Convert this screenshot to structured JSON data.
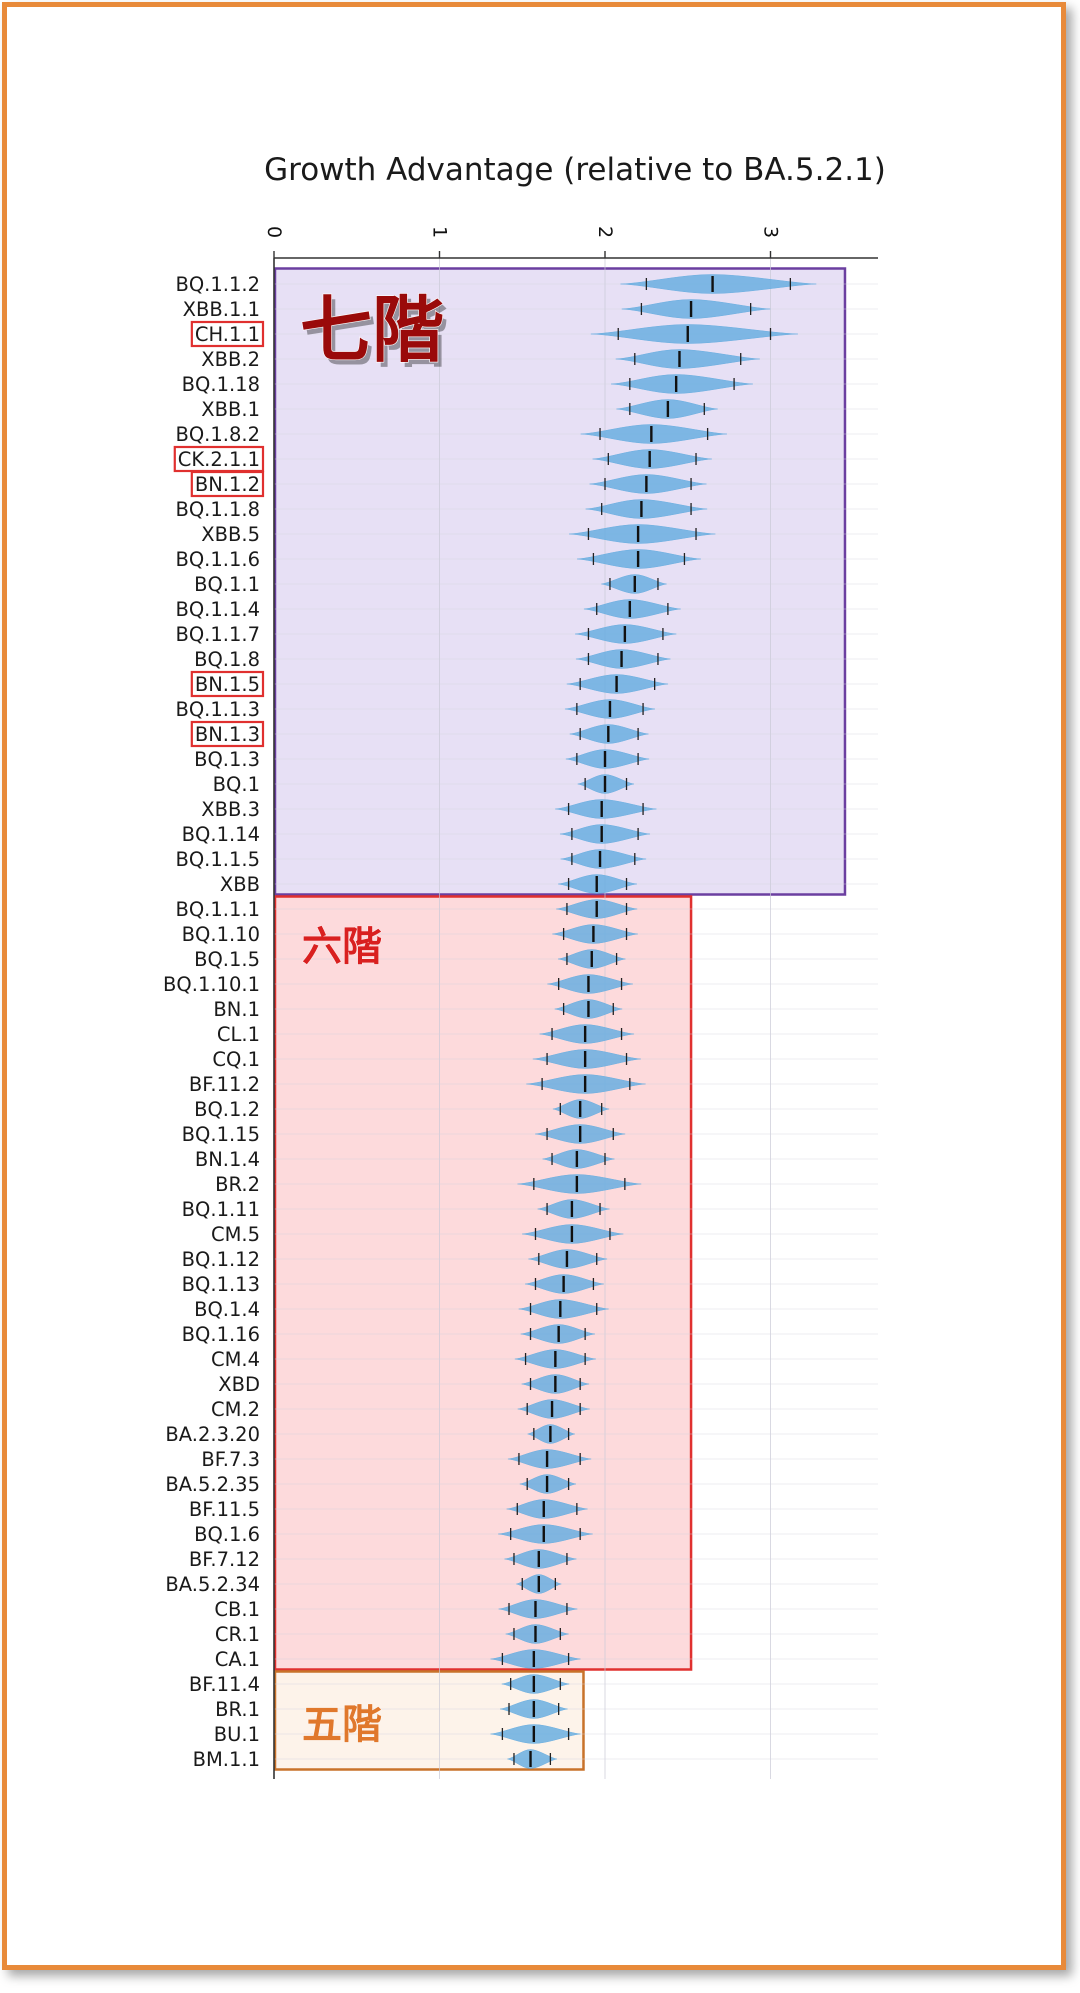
{
  "chart_data": {
    "type": "violin",
    "title": "Growth Advantage (relative to BA.5.2.1)",
    "xlabel": "",
    "ylabel": "",
    "xlim": [
      0,
      3.6
    ],
    "xticks": [
      "0",
      "1",
      "2",
      "3"
    ],
    "xtick_values": [
      0,
      1,
      2,
      3
    ],
    "color": "#6aaee0",
    "categories": [
      {
        "label": "BQ.1.1.2",
        "lo": 2.25,
        "median": 2.65,
        "hi": 3.12,
        "highlight": false
      },
      {
        "label": "XBB.1.1",
        "lo": 2.22,
        "median": 2.52,
        "hi": 2.88,
        "highlight": false
      },
      {
        "label": "CH.1.1",
        "lo": 2.08,
        "median": 2.5,
        "hi": 3.0,
        "highlight": true
      },
      {
        "label": "XBB.2",
        "lo": 2.18,
        "median": 2.45,
        "hi": 2.82,
        "highlight": false
      },
      {
        "label": "BQ.1.18",
        "lo": 2.15,
        "median": 2.43,
        "hi": 2.78,
        "highlight": false
      },
      {
        "label": "XBB.1",
        "lo": 2.15,
        "median": 2.38,
        "hi": 2.6,
        "highlight": false
      },
      {
        "label": "BQ.1.8.2",
        "lo": 1.97,
        "median": 2.28,
        "hi": 2.62,
        "highlight": false
      },
      {
        "label": "CK.2.1.1",
        "lo": 2.02,
        "median": 2.27,
        "hi": 2.55,
        "highlight": true
      },
      {
        "label": "BN.1.2",
        "lo": 2.0,
        "median": 2.25,
        "hi": 2.52,
        "highlight": true
      },
      {
        "label": "BQ.1.1.8",
        "lo": 1.98,
        "median": 2.22,
        "hi": 2.52,
        "highlight": false
      },
      {
        "label": "XBB.5",
        "lo": 1.9,
        "median": 2.2,
        "hi": 2.55,
        "highlight": false
      },
      {
        "label": "BQ.1.1.6",
        "lo": 1.93,
        "median": 2.2,
        "hi": 2.48,
        "highlight": false
      },
      {
        "label": "BQ.1.1",
        "lo": 2.03,
        "median": 2.18,
        "hi": 2.32,
        "highlight": false
      },
      {
        "label": "BQ.1.1.4",
        "lo": 1.95,
        "median": 2.15,
        "hi": 2.38,
        "highlight": false
      },
      {
        "label": "BQ.1.1.7",
        "lo": 1.9,
        "median": 2.12,
        "hi": 2.35,
        "highlight": false
      },
      {
        "label": "BQ.1.8",
        "lo": 1.9,
        "median": 2.1,
        "hi": 2.32,
        "highlight": false
      },
      {
        "label": "BN.1.5",
        "lo": 1.85,
        "median": 2.07,
        "hi": 2.3,
        "highlight": true
      },
      {
        "label": "BQ.1.1.3",
        "lo": 1.83,
        "median": 2.03,
        "hi": 2.23,
        "highlight": false
      },
      {
        "label": "BN.1.3",
        "lo": 1.85,
        "median": 2.02,
        "hi": 2.2,
        "highlight": true
      },
      {
        "label": "BQ.1.3",
        "lo": 1.83,
        "median": 2.0,
        "hi": 2.2,
        "highlight": false
      },
      {
        "label": "BQ.1",
        "lo": 1.88,
        "median": 2.0,
        "hi": 2.13,
        "highlight": false
      },
      {
        "label": "XBB.3",
        "lo": 1.78,
        "median": 1.98,
        "hi": 2.23,
        "highlight": false
      },
      {
        "label": "BQ.1.14",
        "lo": 1.8,
        "median": 1.98,
        "hi": 2.2,
        "highlight": false
      },
      {
        "label": "BQ.1.1.5",
        "lo": 1.8,
        "median": 1.97,
        "hi": 2.18,
        "highlight": false
      },
      {
        "label": "XBB",
        "lo": 1.78,
        "median": 1.95,
        "hi": 2.13,
        "highlight": false
      },
      {
        "label": "BQ.1.1.1",
        "lo": 1.77,
        "median": 1.95,
        "hi": 2.13,
        "highlight": false
      },
      {
        "label": "BQ.1.10",
        "lo": 1.75,
        "median": 1.93,
        "hi": 2.13,
        "highlight": false
      },
      {
        "label": "BQ.1.5",
        "lo": 1.77,
        "median": 1.92,
        "hi": 2.07,
        "highlight": false
      },
      {
        "label": "BQ.1.10.1",
        "lo": 1.72,
        "median": 1.9,
        "hi": 2.1,
        "highlight": false
      },
      {
        "label": "BN.1",
        "lo": 1.75,
        "median": 1.9,
        "hi": 2.05,
        "highlight": false
      },
      {
        "label": "CL.1",
        "lo": 1.68,
        "median": 1.88,
        "hi": 2.1,
        "highlight": false
      },
      {
        "label": "CQ.1",
        "lo": 1.65,
        "median": 1.88,
        "hi": 2.13,
        "highlight": false
      },
      {
        "label": "BF.11.2",
        "lo": 1.62,
        "median": 1.88,
        "hi": 2.15,
        "highlight": false
      },
      {
        "label": "BQ.1.2",
        "lo": 1.73,
        "median": 1.85,
        "hi": 1.98,
        "highlight": false
      },
      {
        "label": "BQ.1.15",
        "lo": 1.65,
        "median": 1.85,
        "hi": 2.05,
        "highlight": false
      },
      {
        "label": "BN.1.4",
        "lo": 1.68,
        "median": 1.83,
        "hi": 2.0,
        "highlight": false
      },
      {
        "label": "BR.2",
        "lo": 1.57,
        "median": 1.83,
        "hi": 2.12,
        "highlight": false
      },
      {
        "label": "BQ.1.11",
        "lo": 1.65,
        "median": 1.8,
        "hi": 1.97,
        "highlight": false
      },
      {
        "label": "CM.5",
        "lo": 1.58,
        "median": 1.8,
        "hi": 2.03,
        "highlight": false
      },
      {
        "label": "BQ.1.12",
        "lo": 1.6,
        "median": 1.77,
        "hi": 1.95,
        "highlight": false
      },
      {
        "label": "BQ.1.13",
        "lo": 1.58,
        "median": 1.75,
        "hi": 1.93,
        "highlight": false
      },
      {
        "label": "BQ.1.4",
        "lo": 1.55,
        "median": 1.73,
        "hi": 1.95,
        "highlight": false
      },
      {
        "label": "BQ.1.16",
        "lo": 1.55,
        "median": 1.72,
        "hi": 1.88,
        "highlight": false
      },
      {
        "label": "CM.4",
        "lo": 1.52,
        "median": 1.7,
        "hi": 1.88,
        "highlight": false
      },
      {
        "label": "XBD",
        "lo": 1.55,
        "median": 1.7,
        "hi": 1.85,
        "highlight": false
      },
      {
        "label": "CM.2",
        "lo": 1.53,
        "median": 1.68,
        "hi": 1.85,
        "highlight": false
      },
      {
        "label": "BA.2.3.20",
        "lo": 1.57,
        "median": 1.67,
        "hi": 1.78,
        "highlight": false
      },
      {
        "label": "BF.7.3",
        "lo": 1.48,
        "median": 1.65,
        "hi": 1.85,
        "highlight": false
      },
      {
        "label": "BA.5.2.35",
        "lo": 1.53,
        "median": 1.65,
        "hi": 1.78,
        "highlight": false
      },
      {
        "label": "BF.11.5",
        "lo": 1.47,
        "median": 1.63,
        "hi": 1.83,
        "highlight": false
      },
      {
        "label": "BQ.1.6",
        "lo": 1.43,
        "median": 1.63,
        "hi": 1.85,
        "highlight": false
      },
      {
        "label": "BF.7.12",
        "lo": 1.45,
        "median": 1.6,
        "hi": 1.77,
        "highlight": false
      },
      {
        "label": "BA.5.2.34",
        "lo": 1.5,
        "median": 1.6,
        "hi": 1.7,
        "highlight": false
      },
      {
        "label": "CB.1",
        "lo": 1.42,
        "median": 1.58,
        "hi": 1.77,
        "highlight": false
      },
      {
        "label": "CR.1",
        "lo": 1.45,
        "median": 1.58,
        "hi": 1.73,
        "highlight": false
      },
      {
        "label": "CA.1",
        "lo": 1.38,
        "median": 1.57,
        "hi": 1.78,
        "highlight": false
      },
      {
        "label": "BF.11.4",
        "lo": 1.43,
        "median": 1.57,
        "hi": 1.73,
        "highlight": false
      },
      {
        "label": "BR.1",
        "lo": 1.42,
        "median": 1.57,
        "hi": 1.72,
        "highlight": false
      },
      {
        "label": "BU.1",
        "lo": 1.38,
        "median": 1.57,
        "hi": 1.78,
        "highlight": false
      },
      {
        "label": "BM.1.1",
        "lo": 1.45,
        "median": 1.55,
        "hi": 1.67,
        "highlight": false
      }
    ],
    "tiers": [
      {
        "label": "七階",
        "from": 0,
        "to": 24,
        "x_max": 3.45,
        "fill": "#e3daf3",
        "stroke": "#6b3fa0",
        "text_color": "#9a0a0a"
      },
      {
        "label": "六階",
        "from": 25,
        "to": 55,
        "x_max": 2.52,
        "fill": "#fdd3d6",
        "stroke": "#e0302f",
        "text_color": "#d92020"
      },
      {
        "label": "五階",
        "from": 56,
        "to": 59,
        "x_max": 1.87,
        "fill": "#fdf1e6",
        "stroke": "#c8722a",
        "text_color": "#e0782c"
      }
    ]
  }
}
